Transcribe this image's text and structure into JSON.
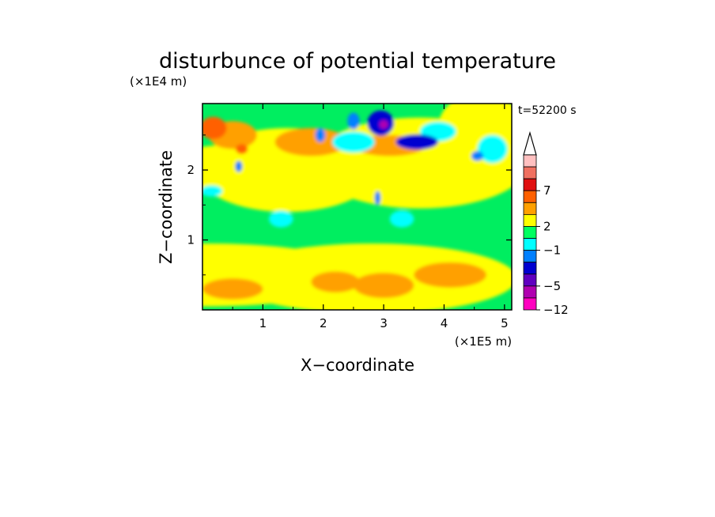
{
  "chart_data": {
    "type": "heatmap",
    "title": "disturbunce of potential temperature",
    "xlabel": "X−coordinate",
    "ylabel": "Z−coordinate",
    "x_scale_note": "(×1E5 m)",
    "y_scale_note": "(×1E4 m)",
    "time_label": "t=52200 s",
    "xlim": [
      0,
      5.12
    ],
    "ylim": [
      0,
      2.95
    ],
    "x_ticks": [
      "1",
      "2",
      "3",
      "4",
      "5"
    ],
    "y_ticks": [
      "1",
      "2"
    ],
    "x_tick_values": [
      1,
      2,
      3,
      4,
      5
    ],
    "y_tick_values": [
      1,
      2
    ],
    "colorbar": {
      "labels": [
        "7",
        "2",
        "−1",
        "−5",
        "−12"
      ],
      "bands_top_to_bottom": [
        "#ffc0c0",
        "#f07060",
        "#e01010",
        "#ff6000",
        "#ffa000",
        "#ffff00",
        "#00ff60",
        "#00ffff",
        "#0080ff",
        "#0000d0",
        "#6000c0",
        "#b000b0",
        "#ff00c0"
      ],
      "extend_arrow_color": "#ffffff"
    },
    "colors": {
      "background_field": "#00ee60",
      "weak_positive": "#ffff00",
      "positive": "#ffa000",
      "strong_positive": "#ff6000",
      "weak_negative": "#00ffff",
      "negative": "#0080ff",
      "strong_negative": "#0000d0",
      "minimum": "#b000b0"
    }
  }
}
